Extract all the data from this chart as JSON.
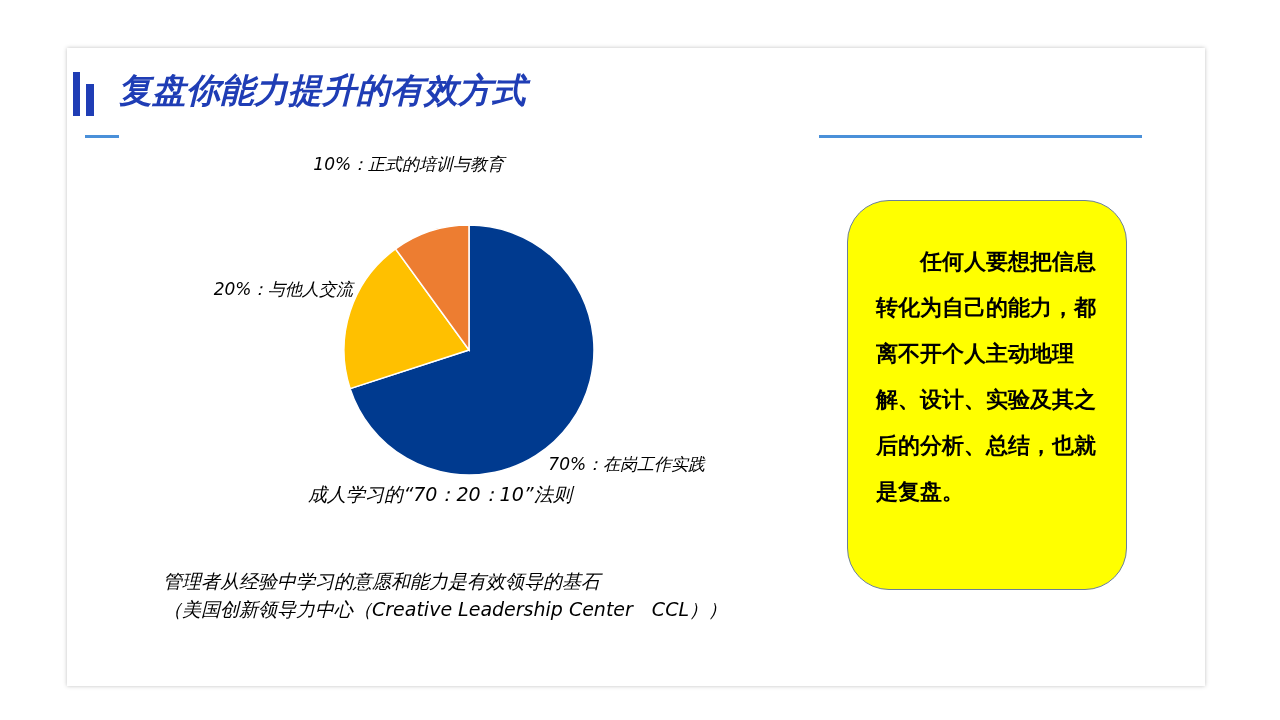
{
  "chart_data": {
    "type": "pie",
    "title": "复盘你能力提升的有效方式",
    "categories": [
      "70%：在岗工作实践",
      "20%：与他人交流",
      "10%：正式的培训与教育"
    ],
    "values": [
      70,
      20,
      10
    ],
    "colors": [
      "#003a8f",
      "#ffc000",
      "#ed7d31"
    ],
    "annotations": [
      "成人学习的“70：20：10”法则",
      "管理者从经验中学习的意愿和能力是有效领导的基石",
      "（美国创新领导力中心（Creative Leadership Center　CCL））",
      "任何人要想把信息转化为自己的能力，都离不开个人主动地理解、设计、实验及其之后的分析、总结，也就是复盘。"
    ]
  }
}
